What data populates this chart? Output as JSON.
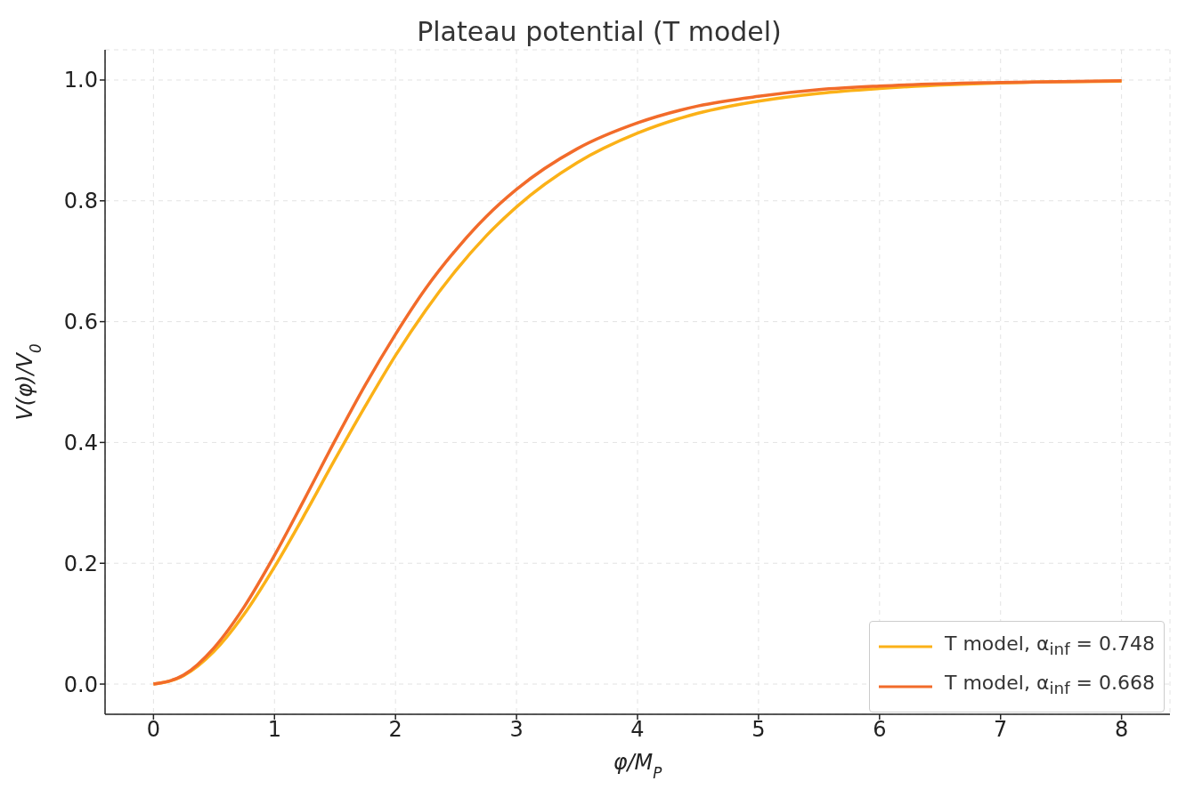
{
  "chart_data": {
    "type": "line",
    "title": "Plateau potential (T model)",
    "xlabel": "φ/M$_{P}$",
    "ylabel": "V(φ)/V$_{0}$",
    "x": [
      0,
      0.25,
      0.5,
      0.75,
      1,
      1.25,
      1.5,
      1.75,
      2,
      2.25,
      2.5,
      2.75,
      3,
      3.5,
      4,
      4.5,
      5,
      5.5,
      6,
      7,
      8
    ],
    "series": [
      {
        "name": "T model, α$_{inf}$ = 0.748",
        "color": "#fbb117",
        "values": [
          0,
          0.014,
          0.054,
          0.116,
          0.194,
          0.281,
          0.372,
          0.46,
          0.544,
          0.619,
          0.685,
          0.742,
          0.79,
          0.863,
          0.912,
          0.945,
          0.965,
          0.978,
          0.986,
          0.995,
          0.998
        ]
      },
      {
        "name": "T model, α$_{inf}$ = 0.668",
        "color": "#f26b2a",
        "values": [
          0,
          0.015,
          0.06,
          0.128,
          0.213,
          0.307,
          0.403,
          0.495,
          0.579,
          0.655,
          0.719,
          0.774,
          0.819,
          0.886,
          0.929,
          0.957,
          0.973,
          0.984,
          0.99,
          0.996,
          0.999
        ]
      }
    ],
    "xlim": [
      -0.4,
      8.4
    ],
    "xticks": [
      0,
      1,
      2,
      3,
      4,
      5,
      6,
      7,
      8
    ],
    "ylim": [
      -0.05,
      1.05
    ],
    "yticks": [
      {
        "value": 0,
        "label": "0.0"
      },
      {
        "value": 0.2,
        "label": "0.2"
      },
      {
        "value": 0.4,
        "label": "0.4"
      },
      {
        "value": 0.6,
        "label": "0.6"
      },
      {
        "value": 0.8,
        "label": "0.8"
      },
      {
        "value": 1,
        "label": "1.0"
      }
    ],
    "grid": true,
    "legend": "bottom right",
    "line_style": "solid",
    "marker": "none"
  }
}
